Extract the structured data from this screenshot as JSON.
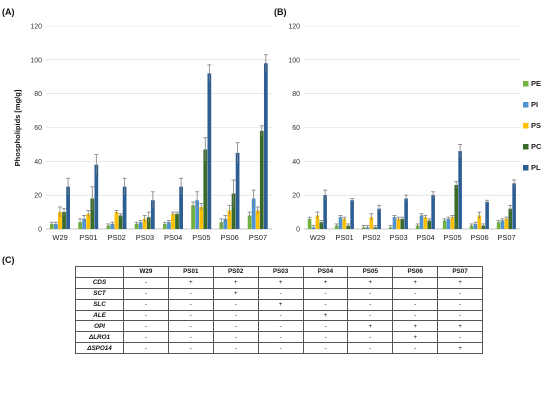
{
  "panels": {
    "a_label": "(A)",
    "b_label": "(B)",
    "c_label": "(C)"
  },
  "chart_data": [
    {
      "type": "bar",
      "panel": "(A)",
      "title": "",
      "xlabel": "",
      "ylabel": "Phospholipids [mg/g]",
      "ylim": [
        0,
        120
      ],
      "yticks": [
        0,
        20,
        40,
        60,
        80,
        100,
        120
      ],
      "grid": true,
      "legend": "none",
      "categories": [
        "W29",
        "PS01",
        "PS02",
        "PS03",
        "PS04",
        "PS05",
        "PS06",
        "PS07"
      ],
      "series": [
        {
          "name": "PE",
          "color": "#70b13f",
          "values": [
            3,
            4,
            2,
            3,
            3,
            14,
            4,
            8
          ],
          "errors": [
            1,
            2,
            1,
            1,
            1,
            2,
            2,
            2
          ]
        },
        {
          "name": "PI",
          "color": "#4e92d2",
          "values": [
            3,
            6,
            3,
            4,
            4,
            17,
            6,
            18
          ],
          "errors": [
            1,
            2,
            1,
            1,
            1,
            5,
            2,
            5
          ]
        },
        {
          "name": "PS",
          "color": "#ffc000",
          "values": [
            10,
            9,
            10,
            6,
            9,
            13,
            11,
            11
          ],
          "errors": [
            3,
            2,
            1,
            2,
            1,
            2,
            3,
            2
          ]
        },
        {
          "name": "PC",
          "color": "#3a6b29",
          "values": [
            10,
            18,
            8,
            7,
            9,
            47,
            21,
            58
          ],
          "errors": [
            2,
            7,
            1,
            3,
            1,
            7,
            8,
            3
          ]
        },
        {
          "name": "PL",
          "color": "#2c5e94",
          "values": [
            25,
            38,
            25,
            17,
            25,
            92,
            45,
            98
          ],
          "errors": [
            5,
            6,
            5,
            5,
            5,
            5,
            6,
            5
          ]
        }
      ]
    },
    {
      "type": "bar",
      "panel": "(B)",
      "title": "",
      "xlabel": "",
      "ylabel": "",
      "ylim": [
        0,
        120
      ],
      "yticks": [
        0,
        20,
        40,
        60,
        80,
        100,
        120
      ],
      "grid": true,
      "legend": "right",
      "categories": [
        "W29",
        "PS01",
        "PS02",
        "PS03",
        "PS04",
        "PS05",
        "PS06",
        "PS07"
      ],
      "series": [
        {
          "name": "PE",
          "color": "#70b13f",
          "values": [
            6,
            2,
            1,
            1,
            2,
            5,
            2,
            4
          ],
          "errors": [
            1,
            1,
            1,
            1,
            1,
            1,
            1,
            1
          ]
        },
        {
          "name": "PI",
          "color": "#4e92d2",
          "values": [
            1,
            7,
            1,
            7,
            8,
            6,
            3,
            5
          ],
          "errors": [
            1,
            1,
            1,
            1,
            1,
            1,
            1,
            1
          ]
        },
        {
          "name": "PS",
          "color": "#ffc000",
          "values": [
            8,
            6,
            7,
            6,
            7,
            7,
            8,
            6
          ],
          "errors": [
            2,
            1,
            2,
            1,
            1,
            1,
            2,
            1
          ]
        },
        {
          "name": "PC",
          "color": "#3a6b29",
          "values": [
            4,
            2,
            1,
            6,
            5,
            26,
            2,
            12
          ],
          "errors": [
            1,
            1,
            1,
            1,
            1,
            2,
            1,
            2
          ]
        },
        {
          "name": "PL",
          "color": "#2c5e94",
          "values": [
            20,
            17,
            12,
            18,
            20,
            46,
            16,
            27
          ],
          "errors": [
            3,
            1,
            2,
            2,
            2,
            4,
            1,
            2
          ]
        }
      ]
    }
  ],
  "table": {
    "headers": [
      "",
      "W29",
      "PS01",
      "PS02",
      "PS03",
      "PS04",
      "PS05",
      "PS06",
      "PS07"
    ],
    "rows": [
      {
        "label": "CDS",
        "cells": [
          "-",
          "+",
          "+",
          "+",
          "+",
          "+",
          "+",
          "+"
        ]
      },
      {
        "label": "SCT",
        "cells": [
          "-",
          "-",
          "+",
          "-",
          "-",
          "-",
          "-",
          "-"
        ]
      },
      {
        "label": "SLC",
        "cells": [
          "-",
          "-",
          "-",
          "+",
          "-",
          "-",
          "-",
          "-"
        ]
      },
      {
        "label": "ALE",
        "cells": [
          "-",
          "-",
          "-",
          "-",
          "+",
          "-",
          "-",
          "-"
        ]
      },
      {
        "label": "OPI",
        "cells": [
          "-",
          "-",
          "-",
          "-",
          "-",
          "+",
          "+",
          "+"
        ]
      },
      {
        "label": "ΔLRO1",
        "cells": [
          "-",
          "-",
          "-",
          "-",
          "-",
          "-",
          "+",
          "-"
        ]
      },
      {
        "label": "ΔSPO14",
        "cells": [
          "-",
          "-",
          "-",
          "-",
          "-",
          "-",
          "-",
          "+"
        ]
      }
    ]
  }
}
